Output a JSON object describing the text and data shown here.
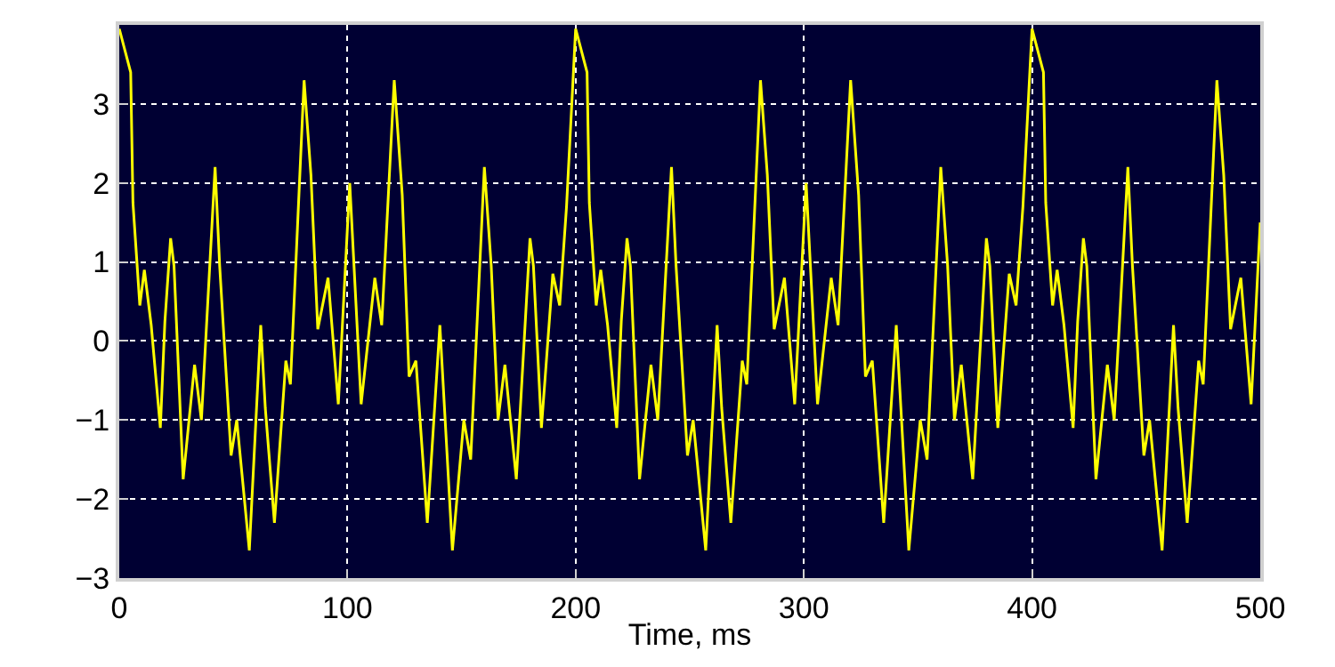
{
  "chart_data": {
    "type": "line",
    "xlabel": "Time, ms",
    "x": [
      0,
      5,
      6,
      9,
      11,
      14,
      18,
      20,
      22.5,
      24,
      28,
      33,
      36,
      42,
      44,
      49,
      51.5,
      57,
      62,
      64,
      68,
      73,
      75,
      81,
      84,
      87,
      91.5,
      96,
      101,
      106,
      112,
      115,
      120.5,
      124,
      127,
      130,
      135,
      140.5,
      146,
      151,
      154,
      160,
      163,
      166,
      169,
      174,
      180,
      181.5,
      185,
      190,
      193,
      196,
      200,
      205,
      206,
      209,
      211,
      214,
      218,
      220,
      222.5,
      224,
      228,
      233,
      236,
      242,
      244,
      249,
      251.5,
      257,
      262,
      264,
      268,
      273,
      275,
      281,
      284,
      287,
      291.5,
      296,
      301,
      306,
      312,
      315,
      320.5,
      324,
      327,
      330,
      335,
      340.5,
      346,
      351,
      354,
      360,
      363,
      366,
      369,
      374,
      380,
      381.5,
      385,
      390,
      393,
      396,
      400,
      405,
      406,
      409,
      411,
      414,
      418,
      420,
      422.5,
      424,
      428,
      433,
      436,
      442,
      444,
      449,
      451.5,
      457,
      462,
      464,
      468,
      473,
      475,
      481,
      484,
      487,
      491.5,
      496,
      500
    ],
    "series": [
      {
        "color": "#ffff00",
        "values": [
          3.95,
          3.4,
          1.75,
          0.45,
          0.9,
          0.2,
          -1.1,
          0.25,
          1.3,
          0.95,
          -1.75,
          -0.3,
          -1.0,
          2.2,
          0.95,
          -1.45,
          -1.0,
          -2.65,
          0.2,
          -0.85,
          -2.3,
          -0.25,
          -0.55,
          3.3,
          2.1,
          0.15,
          0.8,
          -0.8,
          2.0,
          -0.8,
          0.8,
          0.2,
          3.3,
          1.85,
          -0.45,
          -0.25,
          -2.3,
          0.2,
          -2.65,
          -1.0,
          -1.5,
          2.2,
          0.95,
          -1.0,
          -0.3,
          -1.75,
          1.3,
          0.95,
          -1.1,
          0.85,
          0.45,
          1.7,
          3.95,
          3.4,
          1.75,
          0.45,
          0.9,
          0.2,
          -1.1,
          0.25,
          1.3,
          0.95,
          -1.75,
          -0.3,
          -1.0,
          2.2,
          0.95,
          -1.45,
          -1.0,
          -2.65,
          0.2,
          -0.85,
          -2.3,
          -0.25,
          -0.55,
          3.3,
          2.1,
          0.15,
          0.8,
          -0.8,
          2.0,
          -0.8,
          0.8,
          0.2,
          3.3,
          1.85,
          -0.45,
          -0.25,
          -2.3,
          0.2,
          -2.65,
          -1.0,
          -1.5,
          2.2,
          0.95,
          -1.0,
          -0.3,
          -1.75,
          1.3,
          0.95,
          -1.1,
          0.85,
          0.45,
          1.7,
          3.95,
          3.4,
          1.75,
          0.45,
          0.9,
          0.2,
          -1.1,
          0.25,
          1.3,
          0.95,
          -1.75,
          -0.3,
          -1.0,
          2.2,
          0.95,
          -1.45,
          -1.0,
          -2.65,
          0.2,
          -0.85,
          -2.3,
          -0.25,
          -0.55,
          3.3,
          2.1,
          0.15,
          0.8,
          -0.8,
          1.5
        ]
      }
    ],
    "xlim": [
      0,
      500
    ],
    "ylim": [
      -3,
      4.0
    ],
    "xticks": [
      0,
      100,
      200,
      300,
      400,
      500
    ],
    "yticks": [
      -3,
      -2,
      -1,
      0,
      1,
      2,
      3
    ],
    "grid": true,
    "line_style": "solid",
    "marker": "none"
  }
}
